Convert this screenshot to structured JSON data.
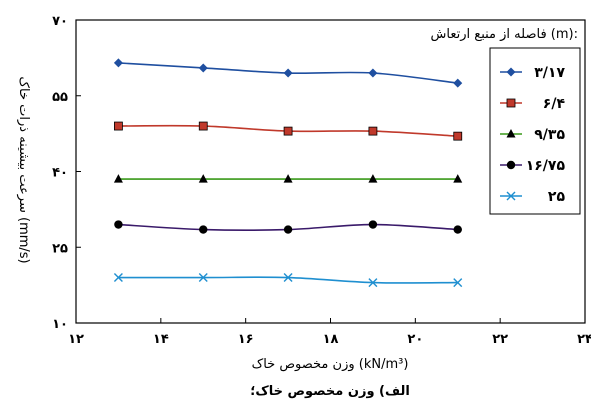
{
  "chart_data": {
    "type": "line",
    "title": "",
    "caption": "الف) وزن مخصوص خاک؛",
    "xlabel": "وزن مخصوص خاک (kN/m³)",
    "ylabel": "سرعت بیشینه ذرات خاک (mm/s)",
    "xlim": [
      12,
      24
    ],
    "ylim": [
      10,
      70
    ],
    "x_ticks": [
      12,
      14,
      16,
      18,
      20,
      22,
      24
    ],
    "x_tick_labels": [
      "۱۲",
      "۱۴",
      "۱۶",
      "۱۸",
      "۲۰",
      "۲۲",
      "۲۴"
    ],
    "y_ticks": [
      10,
      25,
      40,
      55,
      70
    ],
    "y_tick_labels": [
      "۱۰",
      "۲۵",
      "۴۰",
      "۵۵",
      "۷۰"
    ],
    "grid": false,
    "legend_title": "فاصله از منبع ارتعاش (m):",
    "legend_position": "right",
    "x": [
      13,
      15,
      17,
      19,
      21
    ],
    "series": [
      {
        "name": "۳/۱۷",
        "color": "#1f4fa0",
        "marker": "diamond",
        "values": [
          61.5,
          60.5,
          59.5,
          59.5,
          57.5
        ]
      },
      {
        "name": "۶/۴",
        "color": "#c0392b",
        "marker": "square",
        "values": [
          49,
          49,
          48,
          48,
          47
        ]
      },
      {
        "name": "۹/۳۵",
        "color": "#3a9a1a",
        "marker": "triangle",
        "values": [
          38.5,
          38.5,
          38.5,
          38.5,
          38.5
        ]
      },
      {
        "name": "۱۶/۷۵",
        "color": "#3a1a6a",
        "marker": "circle",
        "values": [
          29.5,
          28.5,
          28.5,
          29.5,
          28.5
        ]
      },
      {
        "name": "۲۵",
        "color": "#1f8fd0",
        "marker": "x",
        "values": [
          19,
          19,
          19,
          18,
          18
        ]
      }
    ]
  }
}
